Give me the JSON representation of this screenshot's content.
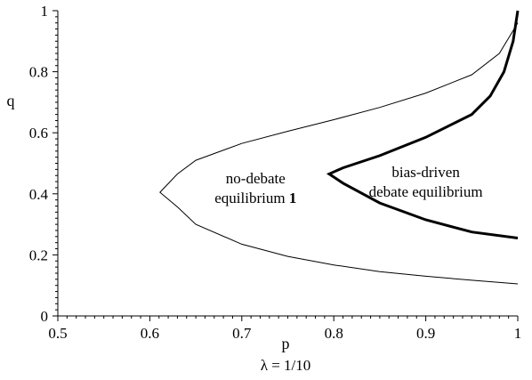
{
  "chart_data": {
    "type": "line",
    "xlabel": "p",
    "ylabel": "q",
    "caption": "λ = 1/10",
    "xlim": [
      0.5,
      1
    ],
    "ylim": [
      0,
      1
    ],
    "x_ticks": [
      "0.5",
      "0.6",
      "0.7",
      "0.8",
      "0.9",
      "1"
    ],
    "y_ticks": [
      "0",
      "0.2",
      "0.4",
      "0.6",
      "0.8",
      "1"
    ],
    "grid": false,
    "series": [
      {
        "style": "thin",
        "points": [
          [
            1.0,
            0.96
          ],
          [
            0.98,
            0.86
          ],
          [
            0.95,
            0.79
          ],
          [
            0.9,
            0.73
          ],
          [
            0.85,
            0.683
          ],
          [
            0.8,
            0.643
          ],
          [
            0.75,
            0.605
          ],
          [
            0.7,
            0.565
          ],
          [
            0.65,
            0.51
          ],
          [
            0.63,
            0.465
          ],
          [
            0.611,
            0.405
          ],
          [
            0.63,
            0.357
          ],
          [
            0.65,
            0.3
          ],
          [
            0.7,
            0.235
          ],
          [
            0.75,
            0.195
          ],
          [
            0.8,
            0.167
          ],
          [
            0.85,
            0.145
          ],
          [
            0.9,
            0.13
          ],
          [
            0.95,
            0.117
          ],
          [
            1.0,
            0.105
          ]
        ]
      },
      {
        "style": "thick",
        "points": [
          [
            1.0,
            1.0
          ],
          [
            0.995,
            0.9
          ],
          [
            0.985,
            0.8
          ],
          [
            0.97,
            0.72
          ],
          [
            0.95,
            0.66
          ],
          [
            0.9,
            0.585
          ],
          [
            0.85,
            0.525
          ],
          [
            0.81,
            0.485
          ],
          [
            0.795,
            0.465
          ],
          [
            0.81,
            0.435
          ],
          [
            0.85,
            0.37
          ],
          [
            0.9,
            0.315
          ],
          [
            0.95,
            0.275
          ],
          [
            1.0,
            0.255
          ]
        ]
      }
    ],
    "annotations": [
      {
        "lines": [
          "no-debate",
          "equilibrium "
        ],
        "bold_suffix": "1",
        "x": 0.715,
        "y": 0.435
      },
      {
        "lines": [
          "bias-driven",
          "debate equilibrium"
        ],
        "x": 0.9,
        "y": 0.455
      }
    ]
  }
}
